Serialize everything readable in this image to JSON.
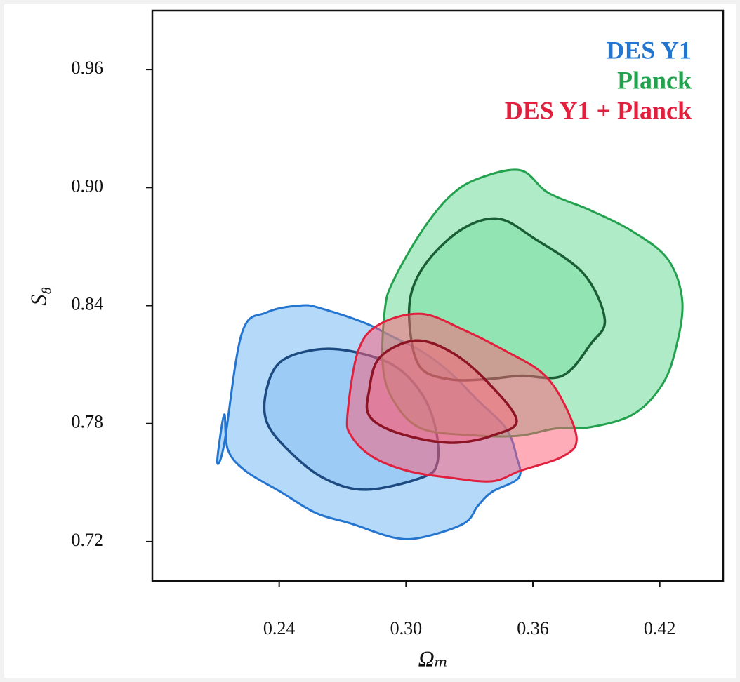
{
  "chart_data": {
    "type": "contour",
    "xlabel": "Ωₘ",
    "ylabel": "S₈",
    "xlim": [
      0.18,
      0.45
    ],
    "ylim": [
      0.7,
      0.99
    ],
    "xticks": [
      0.24,
      {
        "value": 0.3,
        "label": "0.30"
      },
      0.36,
      0.42
    ],
    "yticks": [
      0.72,
      0.78,
      0.84,
      {
        "value": 0.9,
        "label": "0.90"
      },
      0.96
    ],
    "legend": "upper right",
    "series": [
      {
        "name": "DES Y1",
        "color": "#2475cf",
        "fill": "#6cb4f2",
        "inner_color": "#1c4a80",
        "outer": {
          "x": [
            0.2107,
            0.214,
            0.2223,
            0.234,
            0.2507,
            0.2607,
            0.2807,
            0.294,
            0.3073,
            0.3207,
            0.334,
            0.3473,
            0.3523,
            0.3533,
            0.3407,
            0.334,
            0.3273,
            0.3073,
            0.294,
            0.274,
            0.2573,
            0.2407,
            0.224,
            0.2157,
            0.214
          ],
          "y": [
            0.7607,
            0.7697,
            0.8258,
            0.8365,
            0.8401,
            0.8383,
            0.8311,
            0.824,
            0.8168,
            0.8061,
            0.7918,
            0.7775,
            0.7632,
            0.7525,
            0.7453,
            0.7382,
            0.7292,
            0.7221,
            0.7221,
            0.7292,
            0.7346,
            0.7453,
            0.756,
            0.7668,
            0.7846
          ]
        },
        "inner": {
          "x": [
            0.234,
            0.2407,
            0.2573,
            0.274,
            0.294,
            0.3073,
            0.314,
            0.3147,
            0.3073,
            0.2807,
            0.2607,
            0.244,
            0.234
          ],
          "y": [
            0.7972,
            0.8115,
            0.8176,
            0.8168,
            0.8097,
            0.7954,
            0.7775,
            0.7596,
            0.7525,
            0.7464,
            0.7525,
            0.7668,
            0.7811
          ]
        }
      },
      {
        "name": "Planck",
        "color": "#24a14e",
        "fill": "#5fd88f",
        "inner_color": "#1a5e36",
        "outer": {
          "x": [
            0.29,
            0.294,
            0.3073,
            0.3207,
            0.334,
            0.354,
            0.3673,
            0.3873,
            0.4073,
            0.424,
            0.4307,
            0.4273,
            0.4207,
            0.4073,
            0.3873,
            0.3707,
            0.354,
            0.334,
            0.3073,
            0.294,
            0.289
          ],
          "y": [
            0.8383,
            0.8526,
            0.8776,
            0.8955,
            0.9045,
            0.9088,
            0.8973,
            0.8884,
            0.8776,
            0.8633,
            0.8419,
            0.8168,
            0.799,
            0.7846,
            0.7782,
            0.7775,
            0.7739,
            0.7739,
            0.7775,
            0.7918,
            0.8097
          ]
        },
        "inner": {
          "x": [
            0.3023,
            0.3107,
            0.3273,
            0.344,
            0.3607,
            0.384,
            0.394,
            0.3873,
            0.374,
            0.354,
            0.3373,
            0.3207,
            0.3073,
            0.3023
          ],
          "y": [
            0.8455,
            0.8633,
            0.8794,
            0.8841,
            0.8741,
            0.8562,
            0.8329,
            0.8204,
            0.8043,
            0.8043,
            0.8025,
            0.8025,
            0.8079,
            0.824
          ]
        }
      },
      {
        "name": "DES Y1 + Planck",
        "color": "#e0203c",
        "fill": "#ff5a74",
        "inner_color": "#8c1424",
        "outer": {
          "x": [
            0.2723,
            0.2773,
            0.2873,
            0.3073,
            0.3273,
            0.3473,
            0.364,
            0.374,
            0.3807,
            0.374,
            0.354,
            0.3407,
            0.3207,
            0.3007,
            0.284,
            0.274
          ],
          "y": [
            0.7846,
            0.8168,
            0.8304,
            0.8358,
            0.8276,
            0.8168,
            0.8061,
            0.7918,
            0.7721,
            0.7632,
            0.756,
            0.7507,
            0.7525,
            0.756,
            0.7632,
            0.7739
          ]
        },
        "inner": {
          "x": [
            0.2823,
            0.2873,
            0.304,
            0.3207,
            0.3373,
            0.3523,
            0.3407,
            0.324,
            0.3073,
            0.2907,
            0.2823
          ],
          "y": [
            0.7954,
            0.8133,
            0.8222,
            0.8168,
            0.8025,
            0.7818,
            0.7739,
            0.7703,
            0.7721,
            0.7775,
            0.7846
          ]
        }
      }
    ]
  }
}
